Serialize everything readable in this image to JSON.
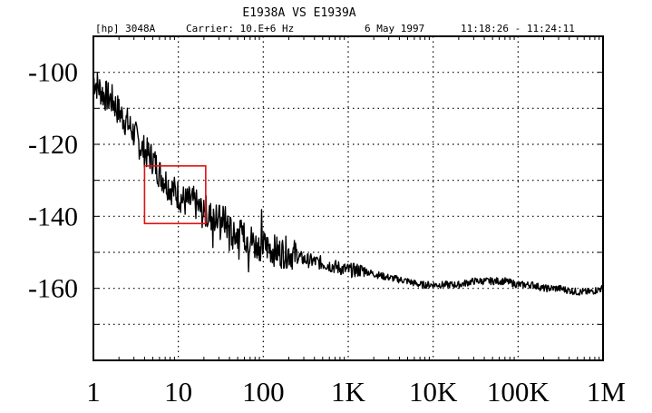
{
  "header": {
    "title": "E1938A VS E1939A",
    "instrument": "[hp] 3048A",
    "carrier": "Carrier: 10.E+6 Hz",
    "date": "6 May 1997",
    "time_range": "11:18:26 - 11:24:11"
  },
  "chart_data": {
    "type": "line",
    "title": "E1938A VS E1939A",
    "xlabel": "",
    "ylabel": "",
    "x_scale": "log",
    "xlim": [
      1,
      1000000
    ],
    "ylim": [
      -180,
      -90
    ],
    "grid": true,
    "grid_style": "dotted",
    "x_tick_values": [
      1,
      10,
      100,
      1000,
      10000,
      100000,
      1000000
    ],
    "x_tick_labels": [
      "1",
      "10",
      "100",
      "1K",
      "10K",
      "100K",
      "1M"
    ],
    "y_tick_values": [
      -100,
      -120,
      -140,
      -160
    ],
    "y_tick_labels": [
      "-100",
      "-120",
      "-140",
      "-160"
    ],
    "series": [
      {
        "color": "#000000",
        "x": [
          1,
          1.3,
          1.7,
          2,
          2.5,
          3,
          3.5,
          4,
          5,
          6,
          7,
          8,
          10,
          12,
          15,
          18,
          20,
          25,
          30,
          35,
          40,
          50,
          60,
          70,
          80,
          100,
          150,
          200,
          300,
          500,
          700,
          1000,
          1500,
          2000,
          3000,
          5000,
          7000,
          10000,
          15000,
          20000,
          30000,
          50000,
          70000,
          100000,
          150000,
          200000,
          300000,
          500000,
          700000,
          1000000
        ],
        "y": [
          -102,
          -106,
          -108,
          -111,
          -114,
          -117,
          -120,
          -122,
          -124,
          -128,
          -130,
          -132,
          -134,
          -136,
          -136,
          -138,
          -140,
          -140,
          -141,
          -141,
          -144,
          -145,
          -146,
          -146,
          -148,
          -148,
          -150,
          -150,
          -152,
          -153,
          -154,
          -155,
          -155,
          -156,
          -157,
          -158,
          -159,
          -159,
          -159,
          -159,
          -158,
          -158,
          -158,
          -159,
          -159,
          -160,
          -160,
          -161,
          -161,
          -160
        ]
      }
    ],
    "annotations": [
      {
        "type": "rectangle",
        "color": "#e01010",
        "x_range": [
          4,
          21
        ],
        "y_range": [
          -142,
          -126
        ]
      }
    ]
  }
}
